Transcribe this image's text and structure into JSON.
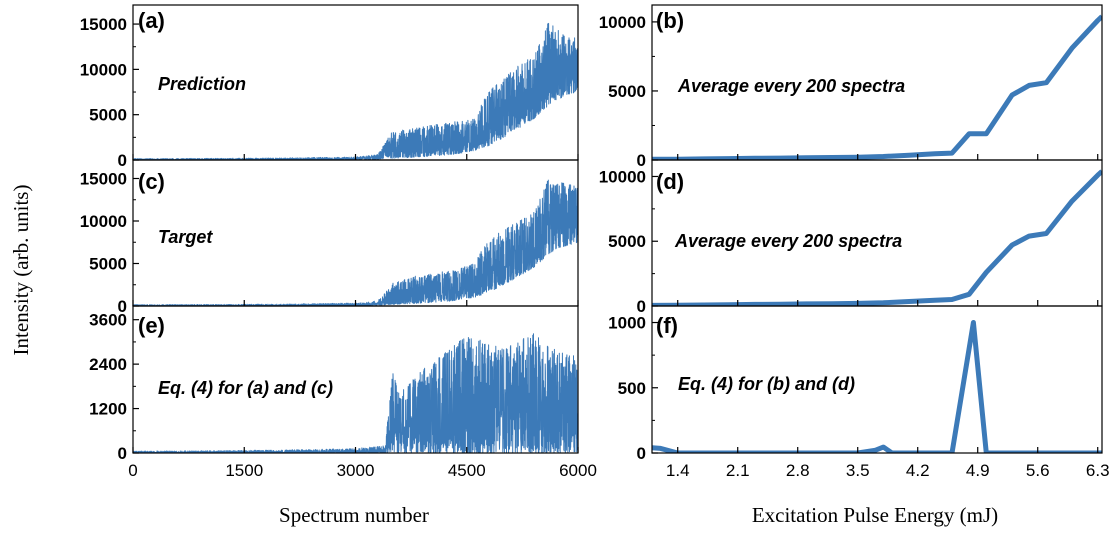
{
  "figure": {
    "ylabel": "Intensity (arb. units)",
    "xlabel_left": "Spectrum number",
    "xlabel_right": "Excitation Pulse Energy (mJ)",
    "series_color": "#3c7ab8"
  },
  "chart_data": [
    {
      "id": "a",
      "type": "line",
      "panel_label": "(a)",
      "annotation": "Prediction",
      "xlim": [
        0,
        6000
      ],
      "ylim": [
        0,
        16000
      ],
      "yticks": [
        0,
        5000,
        10000,
        15000
      ],
      "xticks": [
        0,
        1500,
        3000,
        4500,
        6000
      ],
      "envelope": {
        "x": [
          0,
          1000,
          2000,
          3000,
          3300,
          3500,
          3800,
          4000,
          4300,
          4600,
          4800,
          5000,
          5200,
          5400,
          5600,
          5800,
          6000
        ],
        "max": [
          150,
          180,
          220,
          350,
          600,
          3200,
          3500,
          3800,
          4200,
          4500,
          8000,
          9000,
          10500,
          11500,
          15300,
          14000,
          13500
        ],
        "min": [
          0,
          0,
          0,
          50,
          100,
          200,
          300,
          400,
          600,
          1000,
          1600,
          2500,
          3500,
          4500,
          6000,
          7000,
          7500
        ]
      }
    },
    {
      "id": "b",
      "type": "line",
      "panel_label": "(b)",
      "annotation": "Average every 200 spectra",
      "xlim": [
        1.1,
        6.35
      ],
      "ylim": [
        0,
        10500
      ],
      "yticks": [
        0,
        5000,
        10000
      ],
      "xticks": [
        1.4,
        2.1,
        2.8,
        3.5,
        4.2,
        4.9,
        5.6,
        6.3
      ],
      "x": [
        1.1,
        1.4,
        1.7,
        2.0,
        2.3,
        2.6,
        2.9,
        3.2,
        3.5,
        3.8,
        4.1,
        4.4,
        4.6,
        4.8,
        5.0,
        5.3,
        5.5,
        5.7,
        6.0,
        6.3,
        6.35
      ],
      "y": [
        50,
        60,
        80,
        100,
        120,
        140,
        160,
        180,
        200,
        250,
        350,
        450,
        500,
        1900,
        1900,
        4700,
        5400,
        5600,
        8100,
        10100,
        10400
      ]
    },
    {
      "id": "c",
      "type": "line",
      "panel_label": "(c)",
      "annotation": "Target",
      "xlim": [
        0,
        6000
      ],
      "ylim": [
        0,
        16000
      ],
      "yticks": [
        0,
        5000,
        10000,
        15000
      ],
      "xticks": [
        0,
        1500,
        3000,
        4500,
        6000
      ],
      "envelope": {
        "x": [
          0,
          1000,
          2000,
          3000,
          3300,
          3500,
          3800,
          4000,
          4300,
          4600,
          4800,
          5000,
          5200,
          5400,
          5600,
          5800,
          6000
        ],
        "max": [
          150,
          180,
          220,
          350,
          600,
          2800,
          3500,
          3800,
          4200,
          5000,
          8000,
          9000,
          10000,
          11000,
          15000,
          14500,
          14000
        ],
        "min": [
          0,
          0,
          0,
          50,
          100,
          200,
          300,
          400,
          600,
          1000,
          1600,
          2500,
          3500,
          4500,
          6000,
          7000,
          7500
        ]
      }
    },
    {
      "id": "d",
      "type": "line",
      "panel_label": "(d)",
      "annotation": "Average every 200 spectra",
      "xlim": [
        1.1,
        6.35
      ],
      "ylim": [
        0,
        10500
      ],
      "yticks": [
        0,
        5000,
        10000
      ],
      "xticks": [
        1.4,
        2.1,
        2.8,
        3.5,
        4.2,
        4.9,
        5.6,
        6.3
      ],
      "x": [
        1.1,
        1.4,
        1.7,
        2.0,
        2.3,
        2.6,
        2.9,
        3.2,
        3.5,
        3.8,
        4.1,
        4.4,
        4.6,
        4.8,
        5.0,
        5.3,
        5.5,
        5.7,
        6.0,
        6.3,
        6.35
      ],
      "y": [
        50,
        60,
        80,
        100,
        120,
        140,
        160,
        180,
        200,
        250,
        350,
        450,
        500,
        900,
        2600,
        4700,
        5400,
        5600,
        8100,
        10100,
        10400
      ]
    },
    {
      "id": "e",
      "type": "line",
      "panel_label": "(e)",
      "annotation": "Eq. (4) for (a) and (c)",
      "xlim": [
        0,
        6000
      ],
      "ylim": [
        0,
        3700
      ],
      "yticks": [
        0,
        1200,
        2400,
        3600
      ],
      "xticks": [
        0,
        1500,
        3000,
        4500,
        6000
      ],
      "envelope": {
        "x": [
          0,
          1000,
          2000,
          3000,
          3400,
          3500,
          3600,
          3800,
          4000,
          4500,
          5000,
          5400,
          5600,
          5800,
          6000
        ],
        "max": [
          50,
          60,
          80,
          120,
          200,
          2200,
          1600,
          2100,
          2400,
          3200,
          2800,
          3300,
          2900,
          2700,
          2600
        ],
        "min": [
          0,
          0,
          0,
          0,
          0,
          0,
          0,
          0,
          0,
          0,
          0,
          0,
          0,
          0,
          0
        ]
      }
    },
    {
      "id": "f",
      "type": "line",
      "panel_label": "(f)",
      "annotation": "Eq. (4) for (b) and (d)",
      "xlim": [
        1.1,
        6.35
      ],
      "ylim": [
        0,
        1050
      ],
      "yticks": [
        0,
        500,
        1000
      ],
      "xticks": [
        1.4,
        2.1,
        2.8,
        3.5,
        4.2,
        4.9,
        5.6,
        6.3
      ],
      "x": [
        1.1,
        1.2,
        1.4,
        1.7,
        2.0,
        2.5,
        3.0,
        3.5,
        3.7,
        3.8,
        3.9,
        4.0,
        4.5,
        4.6,
        4.85,
        5.0,
        5.3,
        6.0,
        6.35
      ],
      "y": [
        40,
        35,
        0,
        0,
        0,
        0,
        0,
        0,
        20,
        45,
        0,
        0,
        0,
        0,
        1000,
        0,
        0,
        0,
        0
      ]
    }
  ]
}
